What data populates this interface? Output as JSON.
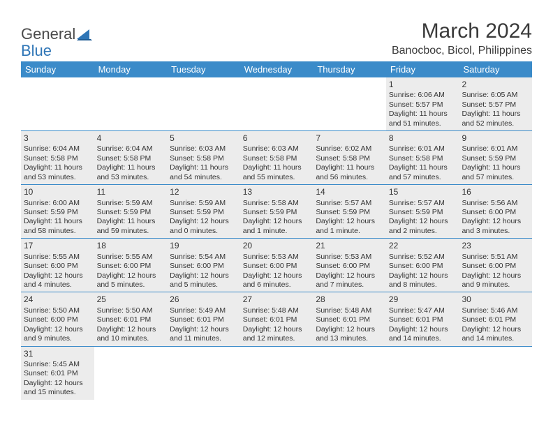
{
  "brand": {
    "part1": "General",
    "part2": "Blue"
  },
  "title": "March 2024",
  "location": "Banocboc, Bicol, Philippines",
  "colors": {
    "header_bg": "#3b8bc9",
    "header_text": "#ffffff",
    "shaded_cell": "#ececec",
    "row_border": "#3b8bc9",
    "text": "#333333",
    "logo_gray": "#4a4a4a",
    "logo_blue": "#2e75b6"
  },
  "day_headers": [
    "Sunday",
    "Monday",
    "Tuesday",
    "Wednesday",
    "Thursday",
    "Friday",
    "Saturday"
  ],
  "weeks": [
    [
      null,
      null,
      null,
      null,
      null,
      {
        "n": "1",
        "sr": "Sunrise: 6:06 AM",
        "ss": "Sunset: 5:57 PM",
        "dl1": "Daylight: 11 hours",
        "dl2": "and 51 minutes."
      },
      {
        "n": "2",
        "sr": "Sunrise: 6:05 AM",
        "ss": "Sunset: 5:57 PM",
        "dl1": "Daylight: 11 hours",
        "dl2": "and 52 minutes."
      }
    ],
    [
      {
        "n": "3",
        "sr": "Sunrise: 6:04 AM",
        "ss": "Sunset: 5:58 PM",
        "dl1": "Daylight: 11 hours",
        "dl2": "and 53 minutes."
      },
      {
        "n": "4",
        "sr": "Sunrise: 6:04 AM",
        "ss": "Sunset: 5:58 PM",
        "dl1": "Daylight: 11 hours",
        "dl2": "and 53 minutes."
      },
      {
        "n": "5",
        "sr": "Sunrise: 6:03 AM",
        "ss": "Sunset: 5:58 PM",
        "dl1": "Daylight: 11 hours",
        "dl2": "and 54 minutes."
      },
      {
        "n": "6",
        "sr": "Sunrise: 6:03 AM",
        "ss": "Sunset: 5:58 PM",
        "dl1": "Daylight: 11 hours",
        "dl2": "and 55 minutes."
      },
      {
        "n": "7",
        "sr": "Sunrise: 6:02 AM",
        "ss": "Sunset: 5:58 PM",
        "dl1": "Daylight: 11 hours",
        "dl2": "and 56 minutes."
      },
      {
        "n": "8",
        "sr": "Sunrise: 6:01 AM",
        "ss": "Sunset: 5:58 PM",
        "dl1": "Daylight: 11 hours",
        "dl2": "and 57 minutes."
      },
      {
        "n": "9",
        "sr": "Sunrise: 6:01 AM",
        "ss": "Sunset: 5:59 PM",
        "dl1": "Daylight: 11 hours",
        "dl2": "and 57 minutes."
      }
    ],
    [
      {
        "n": "10",
        "sr": "Sunrise: 6:00 AM",
        "ss": "Sunset: 5:59 PM",
        "dl1": "Daylight: 11 hours",
        "dl2": "and 58 minutes."
      },
      {
        "n": "11",
        "sr": "Sunrise: 5:59 AM",
        "ss": "Sunset: 5:59 PM",
        "dl1": "Daylight: 11 hours",
        "dl2": "and 59 minutes."
      },
      {
        "n": "12",
        "sr": "Sunrise: 5:59 AM",
        "ss": "Sunset: 5:59 PM",
        "dl1": "Daylight: 12 hours",
        "dl2": "and 0 minutes."
      },
      {
        "n": "13",
        "sr": "Sunrise: 5:58 AM",
        "ss": "Sunset: 5:59 PM",
        "dl1": "Daylight: 12 hours",
        "dl2": "and 1 minute."
      },
      {
        "n": "14",
        "sr": "Sunrise: 5:57 AM",
        "ss": "Sunset: 5:59 PM",
        "dl1": "Daylight: 12 hours",
        "dl2": "and 1 minute."
      },
      {
        "n": "15",
        "sr": "Sunrise: 5:57 AM",
        "ss": "Sunset: 5:59 PM",
        "dl1": "Daylight: 12 hours",
        "dl2": "and 2 minutes."
      },
      {
        "n": "16",
        "sr": "Sunrise: 5:56 AM",
        "ss": "Sunset: 6:00 PM",
        "dl1": "Daylight: 12 hours",
        "dl2": "and 3 minutes."
      }
    ],
    [
      {
        "n": "17",
        "sr": "Sunrise: 5:55 AM",
        "ss": "Sunset: 6:00 PM",
        "dl1": "Daylight: 12 hours",
        "dl2": "and 4 minutes."
      },
      {
        "n": "18",
        "sr": "Sunrise: 5:55 AM",
        "ss": "Sunset: 6:00 PM",
        "dl1": "Daylight: 12 hours",
        "dl2": "and 5 minutes."
      },
      {
        "n": "19",
        "sr": "Sunrise: 5:54 AM",
        "ss": "Sunset: 6:00 PM",
        "dl1": "Daylight: 12 hours",
        "dl2": "and 5 minutes."
      },
      {
        "n": "20",
        "sr": "Sunrise: 5:53 AM",
        "ss": "Sunset: 6:00 PM",
        "dl1": "Daylight: 12 hours",
        "dl2": "and 6 minutes."
      },
      {
        "n": "21",
        "sr": "Sunrise: 5:53 AM",
        "ss": "Sunset: 6:00 PM",
        "dl1": "Daylight: 12 hours",
        "dl2": "and 7 minutes."
      },
      {
        "n": "22",
        "sr": "Sunrise: 5:52 AM",
        "ss": "Sunset: 6:00 PM",
        "dl1": "Daylight: 12 hours",
        "dl2": "and 8 minutes."
      },
      {
        "n": "23",
        "sr": "Sunrise: 5:51 AM",
        "ss": "Sunset: 6:00 PM",
        "dl1": "Daylight: 12 hours",
        "dl2": "and 9 minutes."
      }
    ],
    [
      {
        "n": "24",
        "sr": "Sunrise: 5:50 AM",
        "ss": "Sunset: 6:00 PM",
        "dl1": "Daylight: 12 hours",
        "dl2": "and 9 minutes."
      },
      {
        "n": "25",
        "sr": "Sunrise: 5:50 AM",
        "ss": "Sunset: 6:01 PM",
        "dl1": "Daylight: 12 hours",
        "dl2": "and 10 minutes."
      },
      {
        "n": "26",
        "sr": "Sunrise: 5:49 AM",
        "ss": "Sunset: 6:01 PM",
        "dl1": "Daylight: 12 hours",
        "dl2": "and 11 minutes."
      },
      {
        "n": "27",
        "sr": "Sunrise: 5:48 AM",
        "ss": "Sunset: 6:01 PM",
        "dl1": "Daylight: 12 hours",
        "dl2": "and 12 minutes."
      },
      {
        "n": "28",
        "sr": "Sunrise: 5:48 AM",
        "ss": "Sunset: 6:01 PM",
        "dl1": "Daylight: 12 hours",
        "dl2": "and 13 minutes."
      },
      {
        "n": "29",
        "sr": "Sunrise: 5:47 AM",
        "ss": "Sunset: 6:01 PM",
        "dl1": "Daylight: 12 hours",
        "dl2": "and 14 minutes."
      },
      {
        "n": "30",
        "sr": "Sunrise: 5:46 AM",
        "ss": "Sunset: 6:01 PM",
        "dl1": "Daylight: 12 hours",
        "dl2": "and 14 minutes."
      }
    ],
    [
      {
        "n": "31",
        "sr": "Sunrise: 5:45 AM",
        "ss": "Sunset: 6:01 PM",
        "dl1": "Daylight: 12 hours",
        "dl2": "and 15 minutes."
      },
      null,
      null,
      null,
      null,
      null,
      null
    ]
  ]
}
